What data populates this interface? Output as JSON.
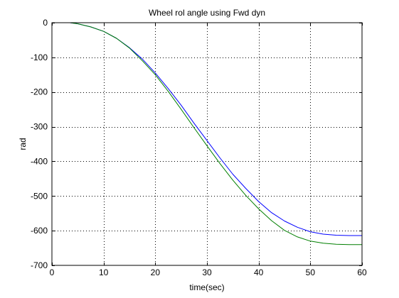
{
  "chart_data": {
    "type": "line",
    "title": "Wheel rol angle using Fwd dyn",
    "xlabel": "time(sec)",
    "ylabel": "rad",
    "xlim": [
      0,
      60
    ],
    "ylim": [
      -700,
      0
    ],
    "xticks": [
      0,
      10,
      20,
      30,
      40,
      50,
      60
    ],
    "yticks": [
      0,
      -100,
      -200,
      -300,
      -400,
      -500,
      -600,
      -700
    ],
    "grid": true,
    "grid_style": "dotted",
    "series": [
      {
        "color": "#0000ff",
        "x": [
          3.5,
          5,
          7.5,
          10,
          12.5,
          15,
          17.5,
          20,
          22.5,
          25,
          27.5,
          30,
          32.5,
          35,
          37.5,
          40,
          42.5,
          45,
          47.5,
          50,
          52.5,
          55,
          57.5,
          60
        ],
        "y": [
          0,
          -3,
          -12,
          -25,
          -45,
          -72,
          -105,
          -145,
          -190,
          -238,
          -290,
          -340,
          -390,
          -437,
          -478,
          -516,
          -548,
          -572,
          -590,
          -603,
          -610,
          -613,
          -614,
          -614
        ]
      },
      {
        "color": "#007f00",
        "x": [
          3.5,
          5,
          7.5,
          10,
          12.5,
          15,
          17.5,
          20,
          22.5,
          25,
          27.5,
          30,
          32.5,
          35,
          37.5,
          40,
          42.5,
          45,
          47.5,
          50,
          52.5,
          55,
          57.5,
          60
        ],
        "y": [
          0,
          -3,
          -12,
          -25,
          -45,
          -73,
          -110,
          -150,
          -198,
          -250,
          -303,
          -355,
          -406,
          -454,
          -498,
          -537,
          -571,
          -599,
          -618,
          -630,
          -636,
          -639,
          -640,
          -640
        ]
      }
    ]
  }
}
